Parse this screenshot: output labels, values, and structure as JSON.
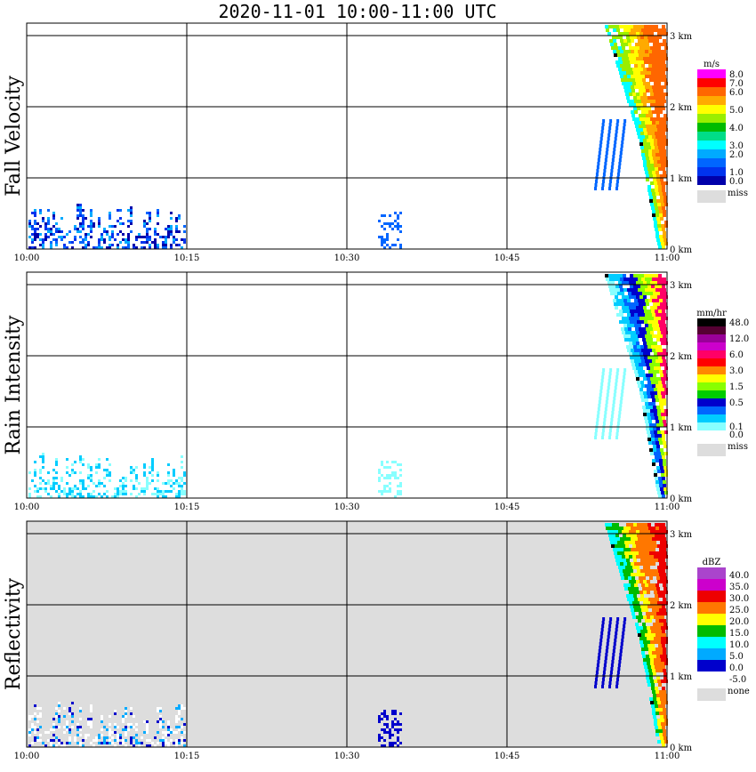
{
  "chart_data": {
    "type": "heatmap",
    "title": "2020-11-01   10:00-11:00 UTC",
    "x_tick_labels": [
      "10:00",
      "10:15",
      "10:30",
      "10:45",
      "11:00"
    ],
    "height_tick_labels": [
      "0 km",
      "1 km",
      "2 km",
      "3 km"
    ],
    "panels": [
      {
        "name": "Fall Velocity",
        "unit": "m/s",
        "background": "#ffffff",
        "colorbar": [
          {
            "label": "8.0",
            "color": "#ff00ff"
          },
          {
            "label": "7.0",
            "color": "#ff0000"
          },
          {
            "label": "6.0",
            "color": "#ff6600"
          },
          {
            "label": "",
            "color": "#ffaa00"
          },
          {
            "label": "5.0",
            "color": "#ffff00"
          },
          {
            "label": "",
            "color": "#99ee00"
          },
          {
            "label": "4.0",
            "color": "#00bb00"
          },
          {
            "label": "",
            "color": "#00dd88"
          },
          {
            "label": "3.0",
            "color": "#00ffff"
          },
          {
            "label": "2.0",
            "color": "#00aaff"
          },
          {
            "label": "",
            "color": "#0066ff"
          },
          {
            "label": "1.0",
            "color": "#0033ee"
          },
          {
            "label": "0.0",
            "color": "#0000aa"
          }
        ],
        "missing_label": "miss",
        "missing_color": "#dddddd"
      },
      {
        "name": "Rain Intensity",
        "unit": "mm/hr",
        "background": "#ffffff",
        "colorbar": [
          {
            "label": "48.0",
            "color": "#000000"
          },
          {
            "label": "",
            "color": "#550033"
          },
          {
            "label": "12.0",
            "color": "#990099"
          },
          {
            "label": "",
            "color": "#cc00cc"
          },
          {
            "label": "6.0",
            "color": "#ff0066"
          },
          {
            "label": "",
            "color": "#ff0000"
          },
          {
            "label": "3.0",
            "color": "#ff8800"
          },
          {
            "label": "",
            "color": "#ffff00"
          },
          {
            "label": "1.5",
            "color": "#88ff00"
          },
          {
            "label": "",
            "color": "#00cc00"
          },
          {
            "label": "0.5",
            "color": "#0000cc"
          },
          {
            "label": "",
            "color": "#0066ff"
          },
          {
            "label": "",
            "color": "#00ccff"
          },
          {
            "label": "0.1",
            "color": "#88ffff"
          },
          {
            "label": "0.0",
            "color": "#ffffff"
          }
        ],
        "missing_label": "miss",
        "missing_color": "#dddddd"
      },
      {
        "name": "Reflectivity",
        "unit": "dBZ",
        "background": "#dddddd",
        "colorbar": [
          {
            "label": "40.0",
            "color": "#aa44cc"
          },
          {
            "label": "35.0",
            "color": "#cc00cc"
          },
          {
            "label": "30.0",
            "color": "#ee0000"
          },
          {
            "label": "25.0",
            "color": "#ff7700"
          },
          {
            "label": "20.0",
            "color": "#ffff00"
          },
          {
            "label": "15.0",
            "color": "#00bb00"
          },
          {
            "label": "10.0",
            "color": "#00ffff"
          },
          {
            "label": "5.0",
            "color": "#00aaff"
          },
          {
            "label": "0.0",
            "color": "#0000cc"
          },
          {
            "label": "-5.0",
            "color": "#ffffff"
          }
        ],
        "missing_label": "none",
        "missing_color": "#dddddd"
      }
    ]
  }
}
